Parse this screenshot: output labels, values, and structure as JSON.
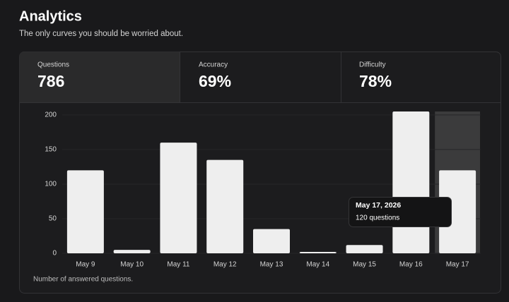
{
  "header": {
    "title": "Analytics",
    "subtitle": "The only curves you should be worried about."
  },
  "tabs": [
    {
      "label": "Questions",
      "value": "786"
    },
    {
      "label": "Accuracy",
      "value": "69%"
    },
    {
      "label": "Difficulty",
      "value": "78%"
    }
  ],
  "chart_data": {
    "type": "bar",
    "categories": [
      "May 9",
      "May 10",
      "May 11",
      "May 12",
      "May 13",
      "May 14",
      "May 15",
      "May 16",
      "May 17"
    ],
    "values": [
      120,
      5,
      160,
      135,
      35,
      2,
      12,
      205,
      120
    ],
    "color": "#eeeeee",
    "ylim": [
      0,
      205
    ],
    "yticks": [
      0,
      50,
      100,
      150,
      200
    ],
    "grid": true,
    "highlight": "May 17",
    "tooltip": {
      "date": "May 17, 2026",
      "text": "120 questions"
    },
    "caption": "Number of answered questions."
  }
}
